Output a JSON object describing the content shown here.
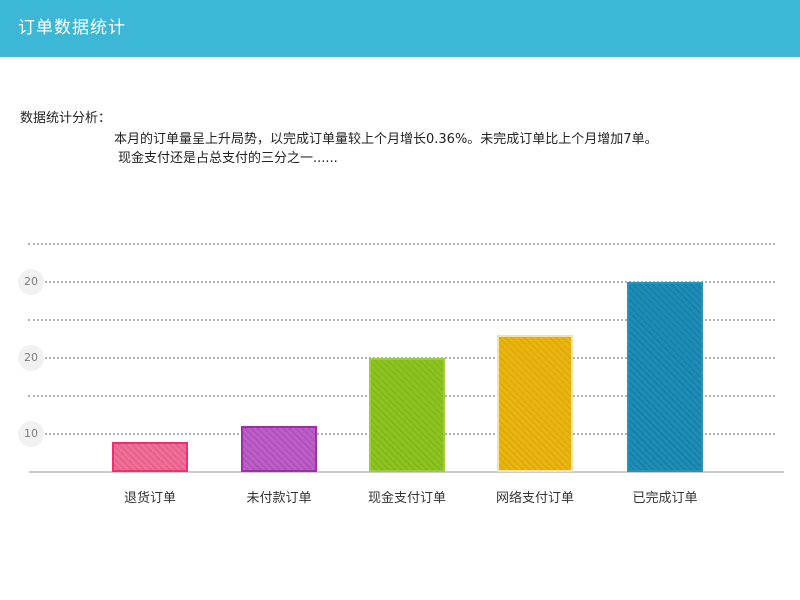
{
  "header": {
    "title": "订单数据统计"
  },
  "analysis": {
    "label": "数据统计分析：",
    "lines": [
      "本月的订单量呈上升局势，以完成订单量较上个月增长0.36%。未完成订单比上个月增加7单。",
      "现金支付还是占总支付的三分之一......"
    ]
  },
  "colors": {
    "header_bg": "#3cb8d6",
    "header_text": "#ffffff",
    "grid_dot": "#b3b3b3",
    "axis_line": "#cccccc",
    "tick_circle_bg": "#f1f1f1",
    "tick_text": "#7d7d7d",
    "body_text": "#222222",
    "xlabel_text": "#333333"
  },
  "chart_data": {
    "type": "bar",
    "title": "订单数据统计",
    "categories": [
      "退货订单",
      "未付款订单",
      "现金支付订单",
      "网络支付订单",
      "已完成订单"
    ],
    "values": [
      9,
      11,
      20,
      23,
      30
    ],
    "xlabel": "",
    "ylabel": "",
    "ylim": [
      5,
      31
    ],
    "y_tick_labels_top_to_bottom": [
      "20",
      "20",
      "10"
    ],
    "grid": "horizontal-dotted",
    "legend": "none",
    "bar_colors": [
      {
        "fill": "#ee6f97",
        "stripe": "#e85c88",
        "border": "#ef2f72"
      },
      {
        "fill": "#bb5ec6",
        "stripe": "#af4fbb",
        "border": "#a32cae"
      },
      {
        "fill": "#8cc31f",
        "stripe": "#83b81a",
        "border": "#9ccd3d"
      },
      {
        "fill": "#e9b411",
        "stripe": "#dfaa09",
        "border": "#f2e2ac"
      },
      {
        "fill": "#1e8cb4",
        "stripe": "#1681a9",
        "border": "#2196bd"
      }
    ]
  }
}
